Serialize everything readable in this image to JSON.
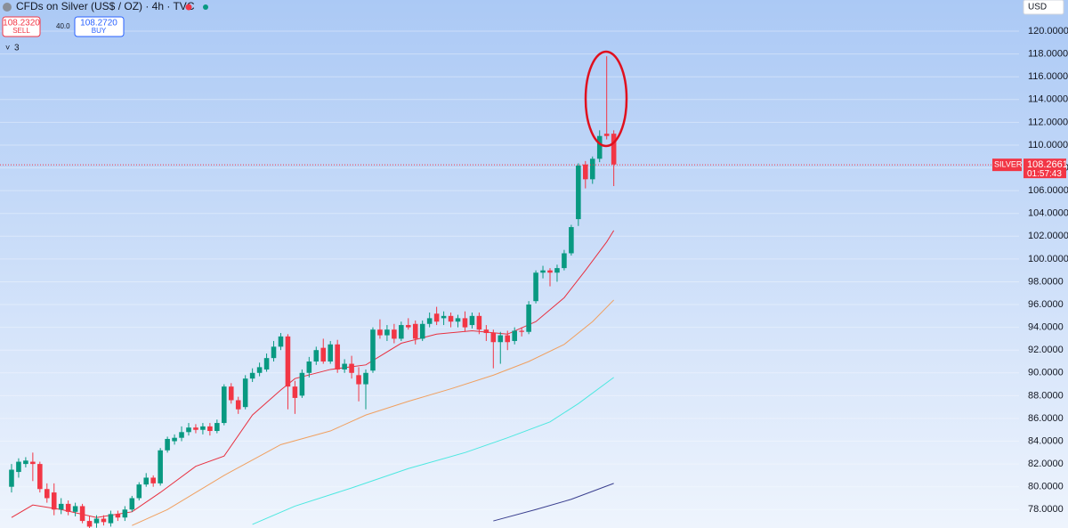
{
  "header": {
    "title": "CFDs on Silver (US$ / OZ) · 4h · TVC",
    "sell_price": "108.2320",
    "sell_label": "SELL",
    "spread": "40.0",
    "buy_price": "108.2720",
    "buy_label": "BUY",
    "indicator_count": "3",
    "currency": "USD"
  },
  "chart_data": {
    "type": "candlestick",
    "up_color": "#089981",
    "down_color": "#f23645",
    "grid": true,
    "ylim": [
      76.38,
      122.74
    ],
    "xlim": [
      -1.63,
      142.2
    ],
    "yticks": [
      {
        "value": 78,
        "label": "78.0000"
      },
      {
        "value": 80,
        "label": "80.0000"
      },
      {
        "value": 82,
        "label": "82.0000"
      },
      {
        "value": 84,
        "label": "84.0000"
      },
      {
        "value": 86,
        "label": "86.0000"
      },
      {
        "value": 88,
        "label": "88.0000"
      },
      {
        "value": 90,
        "label": "90.0000"
      },
      {
        "value": 92,
        "label": "92.0000"
      },
      {
        "value": 94,
        "label": "94.0000"
      },
      {
        "value": 96,
        "label": "96.0000"
      },
      {
        "value": 98,
        "label": "98.0000"
      },
      {
        "value": 100,
        "label": "100.0000"
      },
      {
        "value": 102,
        "label": "102.0000"
      },
      {
        "value": 104,
        "label": "104.0000"
      },
      {
        "value": 106,
        "label": "106.0000"
      },
      {
        "value": 108,
        "label": "108.0000"
      },
      {
        "value": 110,
        "label": "110.0000"
      },
      {
        "value": 112,
        "label": "112.0000"
      },
      {
        "value": 114,
        "label": "114.0000"
      },
      {
        "value": 116,
        "label": "116.0000"
      },
      {
        "value": 118,
        "label": "118.0000"
      },
      {
        "value": 120,
        "label": "120.0000"
      }
    ],
    "open": [
      80.0,
      81.3,
      82.0,
      82.2,
      82.0,
      79.8,
      79.5,
      78.0,
      78.5,
      77.8,
      78.3,
      77.0,
      76.8,
      77.2,
      76.8,
      77.6,
      77.3,
      78.0,
      79.0,
      80.2,
      80.8,
      80.3,
      83.2,
      84.0,
      84.3,
      84.8,
      85.2,
      85.0,
      85.3,
      84.9,
      85.6,
      88.8,
      87.6,
      87.0,
      89.5,
      90.0,
      90.3,
      91.3,
      92.3,
      93.2,
      88.8,
      88.0,
      90.0,
      91.0,
      92.2,
      91.0,
      92.5,
      90.3,
      90.8,
      89.8,
      89.0,
      90.2,
      93.8,
      93.3,
      93.8,
      93.0,
      94.2,
      94.3,
      93.0,
      94.3,
      95.2,
      94.8,
      95.0,
      94.5,
      94.8,
      94.2,
      95.0,
      93.8,
      93.5,
      92.7,
      93.3,
      92.8,
      93.7,
      93.6,
      96.3,
      98.8,
      99.0,
      98.8,
      99.2,
      100.5,
      103.5,
      108.3,
      107.0,
      108.8,
      111.0,
      111.0
    ],
    "high": [
      82.0,
      82.5,
      82.6,
      83.0,
      82.2,
      80.3,
      80.3,
      79.0,
      78.8,
      78.6,
      78.5,
      77.4,
      77.5,
      77.5,
      77.9,
      77.9,
      78.3,
      79.2,
      80.4,
      81.2,
      81.0,
      83.4,
      84.4,
      84.6,
      85.3,
      85.6,
      85.5,
      85.6,
      85.6,
      85.9,
      89.0,
      89.1,
      87.9,
      89.8,
      90.4,
      90.9,
      91.7,
      92.8,
      93.5,
      93.4,
      89.3,
      90.3,
      91.4,
      92.3,
      93.0,
      92.8,
      92.9,
      91.2,
      91.5,
      90.5,
      90.3,
      94.0,
      94.7,
      94.2,
      94.3,
      94.5,
      94.8,
      94.6,
      94.6,
      95.3,
      95.8,
      95.4,
      95.3,
      95.1,
      95.4,
      95.3,
      95.3,
      94.2,
      93.8,
      93.6,
      93.7,
      94.0,
      94.0,
      96.3,
      99.0,
      99.4,
      99.2,
      99.5,
      100.8,
      103.0,
      108.4,
      108.6,
      109.0,
      111.3,
      117.8,
      111.3
    ],
    "low": [
      79.5,
      80.8,
      81.7,
      80.5,
      79.5,
      78.6,
      77.5,
      77.6,
      77.5,
      77.4,
      76.8,
      76.2,
      76.4,
      76.6,
      76.5,
      77.0,
      77.0,
      77.8,
      78.8,
      80.0,
      80.0,
      80.1,
      83.0,
      83.7,
      84.0,
      84.5,
      84.7,
      84.6,
      84.5,
      84.7,
      85.4,
      87.3,
      86.4,
      86.8,
      89.2,
      89.7,
      90.1,
      91.0,
      92.0,
      86.8,
      86.4,
      87.8,
      89.6,
      90.7,
      90.8,
      90.8,
      90.0,
      90.0,
      89.5,
      87.5,
      86.8,
      90.0,
      93.0,
      92.8,
      92.6,
      92.8,
      93.8,
      92.5,
      92.8,
      94.0,
      94.2,
      94.2,
      94.0,
      94.0,
      93.6,
      93.9,
      93.4,
      92.8,
      90.4,
      90.8,
      92.0,
      92.5,
      93.2,
      93.4,
      96.1,
      98.3,
      97.6,
      98.0,
      99.0,
      100.3,
      102.9,
      106.2,
      106.6,
      108.5,
      110.5,
      106.4
    ],
    "close": [
      81.5,
      82.2,
      82.3,
      82.0,
      79.8,
      79.0,
      78.0,
      78.5,
      77.8,
      78.3,
      77.0,
      76.5,
      77.2,
      76.9,
      77.6,
      77.3,
      78.0,
      79.0,
      80.2,
      80.8,
      80.3,
      83.2,
      84.2,
      84.3,
      84.8,
      85.2,
      85.0,
      85.3,
      84.9,
      85.6,
      88.8,
      87.6,
      86.8,
      89.5,
      90.0,
      90.5,
      91.3,
      92.3,
      93.2,
      88.8,
      87.8,
      90.0,
      91.0,
      92.0,
      91.0,
      92.5,
      90.3,
      90.8,
      90.0,
      89.0,
      90.0,
      93.8,
      93.3,
      93.8,
      93.0,
      94.2,
      94.0,
      93.0,
      94.3,
      94.8,
      94.5,
      95.0,
      94.5,
      94.8,
      94.0,
      95.0,
      93.8,
      93.5,
      92.7,
      93.3,
      92.7,
      93.7,
      93.6,
      96.0,
      98.8,
      99.0,
      98.8,
      99.2,
      100.5,
      102.8,
      108.2,
      107.0,
      108.8,
      110.8,
      110.8,
      108.3
    ],
    "lines": [
      {
        "color": "#e8303f",
        "x": [
          0,
          3,
          7,
          12,
          17,
          21,
          26,
          30,
          34,
          38,
          40,
          45,
          50,
          55,
          60,
          65,
          70,
          74,
          78,
          81,
          84,
          85
        ],
        "values": [
          77.3,
          78.4,
          78.0,
          77.3,
          77.8,
          79.5,
          81.8,
          82.7,
          86.3,
          88.5,
          89.5,
          90.3,
          90.7,
          92.6,
          93.4,
          93.7,
          93.4,
          94.5,
          96.6,
          99.0,
          101.5,
          102.5
        ]
      },
      {
        "color": "#f0a060",
        "x": [
          17,
          22,
          30,
          38,
          45,
          50,
          56,
          62,
          68,
          73,
          78,
          82,
          85
        ],
        "values": [
          76.6,
          78.0,
          81.0,
          83.7,
          84.9,
          86.3,
          87.5,
          88.6,
          89.8,
          91.0,
          92.5,
          94.5,
          96.4
        ]
      },
      {
        "color": "#4de8e0",
        "x": [
          34,
          40,
          48,
          56,
          64,
          70,
          76,
          80,
          85
        ],
        "values": [
          76.7,
          78.3,
          79.9,
          81.6,
          83.0,
          84.3,
          85.7,
          87.3,
          89.6
        ]
      },
      {
        "color": "#3a3f8f",
        "x": [
          68,
          74,
          79,
          85
        ],
        "values": [
          77.0,
          78.0,
          78.9,
          80.3
        ]
      }
    ],
    "symbol": "SILVER",
    "last_price": 108.2661,
    "countdown": "01:57:43"
  }
}
